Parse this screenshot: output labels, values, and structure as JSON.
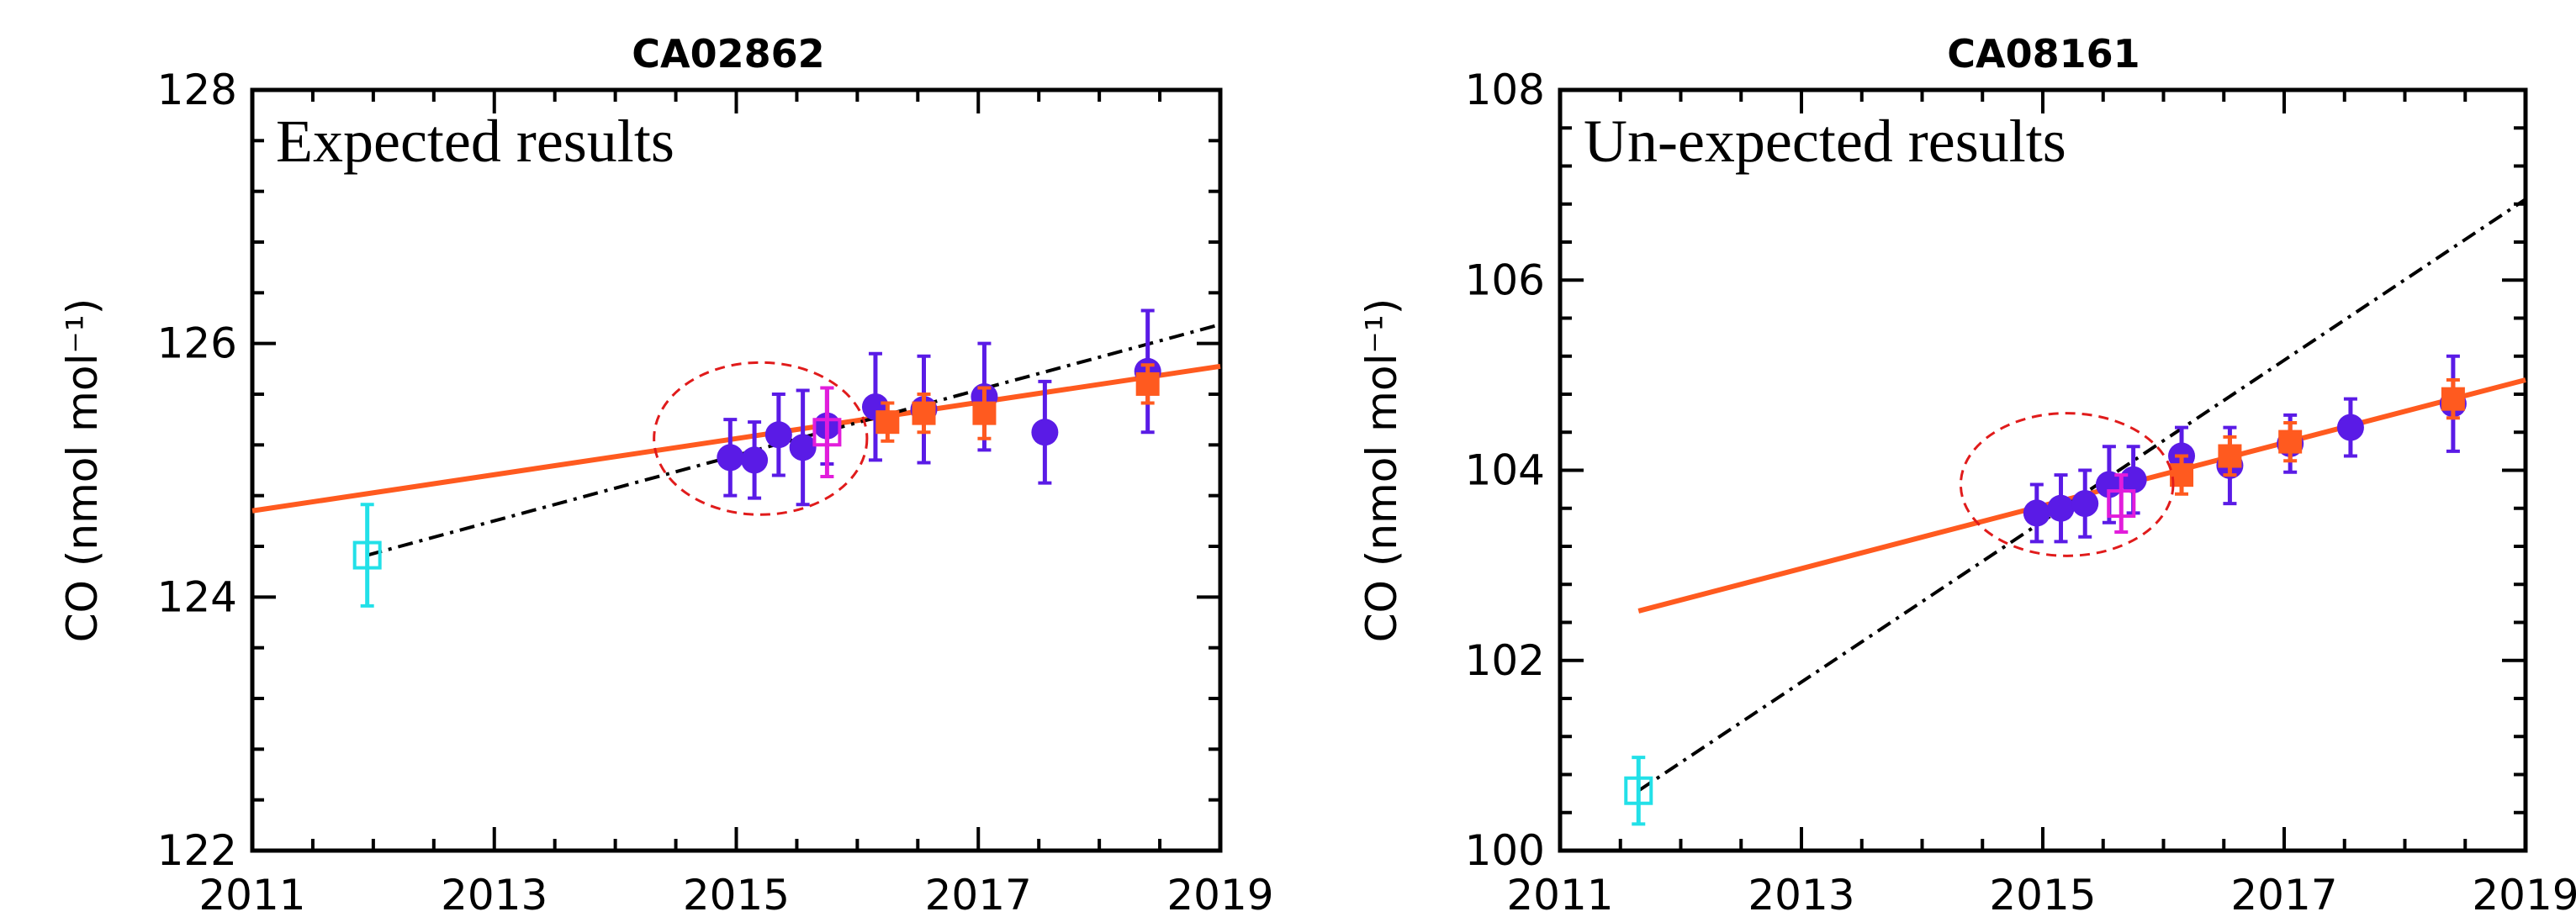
{
  "chart_data": [
    {
      "type": "scatter",
      "title": "CA02862",
      "annotation": "Expected results",
      "ylabel": "CO (nmol mol⁻¹)",
      "xlim": [
        2011,
        2019
      ],
      "ylim": [
        122,
        128
      ],
      "xticks": [
        "2011",
        "2013",
        "2015",
        "2017",
        "2019"
      ],
      "yticks": [
        "122",
        "124",
        "126",
        "128"
      ],
      "fit_lines": [
        {
          "style": "solid",
          "color": "#ff5a1f",
          "x": [
            2011.0,
            2019.0
          ],
          "y": [
            124.68,
            125.82
          ]
        },
        {
          "style": "dash-dot",
          "color": "#000000",
          "x": [
            2011.95,
            2019.0
          ],
          "y": [
            124.33,
            126.15
          ]
        }
      ],
      "series": [
        {
          "marker": "circle",
          "color": "#5a1be6",
          "points": [
            {
              "x": 2014.95,
              "y": 125.1,
              "err": 0.3
            },
            {
              "x": 2015.15,
              "y": 125.08,
              "err": 0.3
            },
            {
              "x": 2015.35,
              "y": 125.28,
              "err": 0.32
            },
            {
              "x": 2015.55,
              "y": 125.18,
              "err": 0.45
            },
            {
              "x": 2015.75,
              "y": 125.35,
              "err": 0.3
            },
            {
              "x": 2016.15,
              "y": 125.5,
              "err": 0.42
            },
            {
              "x": 2016.55,
              "y": 125.48,
              "err": 0.42
            },
            {
              "x": 2017.05,
              "y": 125.58,
              "err": 0.42
            },
            {
              "x": 2017.55,
              "y": 125.3,
              "err": 0.4
            },
            {
              "x": 2018.4,
              "y": 125.78,
              "err": 0.48
            }
          ]
        },
        {
          "marker": "square",
          "color": "#ff5a1f",
          "points": [
            {
              "x": 2016.25,
              "y": 125.38,
              "err": 0.15
            },
            {
              "x": 2016.55,
              "y": 125.45,
              "err": 0.15
            },
            {
              "x": 2017.05,
              "y": 125.45,
              "err": 0.2
            },
            {
              "x": 2018.4,
              "y": 125.68,
              "err": 0.15
            }
          ]
        },
        {
          "marker": "open-square",
          "color": "#e21ddb",
          "points": [
            {
              "x": 2015.75,
              "y": 125.3,
              "err": 0.35
            }
          ]
        },
        {
          "marker": "open-square",
          "color": "#22e0e8",
          "points": [
            {
              "x": 2011.95,
              "y": 124.33,
              "err": 0.4
            }
          ]
        }
      ],
      "highlight_ellipse": {
        "cx": 2015.2,
        "cy": 125.25,
        "rx": 0.88,
        "ry": 0.6
      }
    },
    {
      "type": "scatter",
      "title": "CA08161",
      "annotation": "Un-expected results",
      "ylabel": "CO (nmol mol⁻¹)",
      "xlim": [
        2011,
        2019
      ],
      "ylim": [
        100,
        108
      ],
      "xticks": [
        "2011",
        "2013",
        "2015",
        "2017",
        "2019"
      ],
      "yticks": [
        "100",
        "102",
        "104",
        "106",
        "108"
      ],
      "fit_lines": [
        {
          "style": "solid",
          "color": "#ff5a1f",
          "x": [
            2011.65,
            2019.0
          ],
          "y": [
            102.52,
            104.95
          ]
        },
        {
          "style": "dash-dot",
          "color": "#000000",
          "x": [
            2011.65,
            2019.0
          ],
          "y": [
            100.63,
            106.85
          ]
        }
      ],
      "series": [
        {
          "marker": "circle",
          "color": "#5a1be6",
          "points": [
            {
              "x": 2014.95,
              "y": 103.55,
              "err": 0.3
            },
            {
              "x": 2015.15,
              "y": 103.6,
              "err": 0.35
            },
            {
              "x": 2015.35,
              "y": 103.65,
              "err": 0.35
            },
            {
              "x": 2015.55,
              "y": 103.85,
              "err": 0.4
            },
            {
              "x": 2015.75,
              "y": 103.9,
              "err": 0.35
            },
            {
              "x": 2016.15,
              "y": 104.15,
              "err": 0.3
            },
            {
              "x": 2016.55,
              "y": 104.05,
              "err": 0.4
            },
            {
              "x": 2017.05,
              "y": 104.28,
              "err": 0.3
            },
            {
              "x": 2017.55,
              "y": 104.45,
              "err": 0.3
            },
            {
              "x": 2018.4,
              "y": 104.7,
              "err": 0.5
            }
          ]
        },
        {
          "marker": "square",
          "color": "#ff5a1f",
          "points": [
            {
              "x": 2016.15,
              "y": 103.95,
              "err": 0.2
            },
            {
              "x": 2016.55,
              "y": 104.15,
              "err": 0.2
            },
            {
              "x": 2017.05,
              "y": 104.3,
              "err": 0.2
            },
            {
              "x": 2018.4,
              "y": 104.75,
              "err": 0.2
            }
          ]
        },
        {
          "marker": "open-square",
          "color": "#e21ddb",
          "points": [
            {
              "x": 2015.65,
              "y": 103.65,
              "err": 0.3
            }
          ]
        },
        {
          "marker": "open-square",
          "color": "#22e0e8",
          "points": [
            {
              "x": 2011.65,
              "y": 100.63,
              "err": 0.35
            }
          ]
        }
      ],
      "highlight_ellipse": {
        "cx": 2015.2,
        "cy": 103.85,
        "rx": 0.88,
        "ry": 0.75
      }
    }
  ]
}
